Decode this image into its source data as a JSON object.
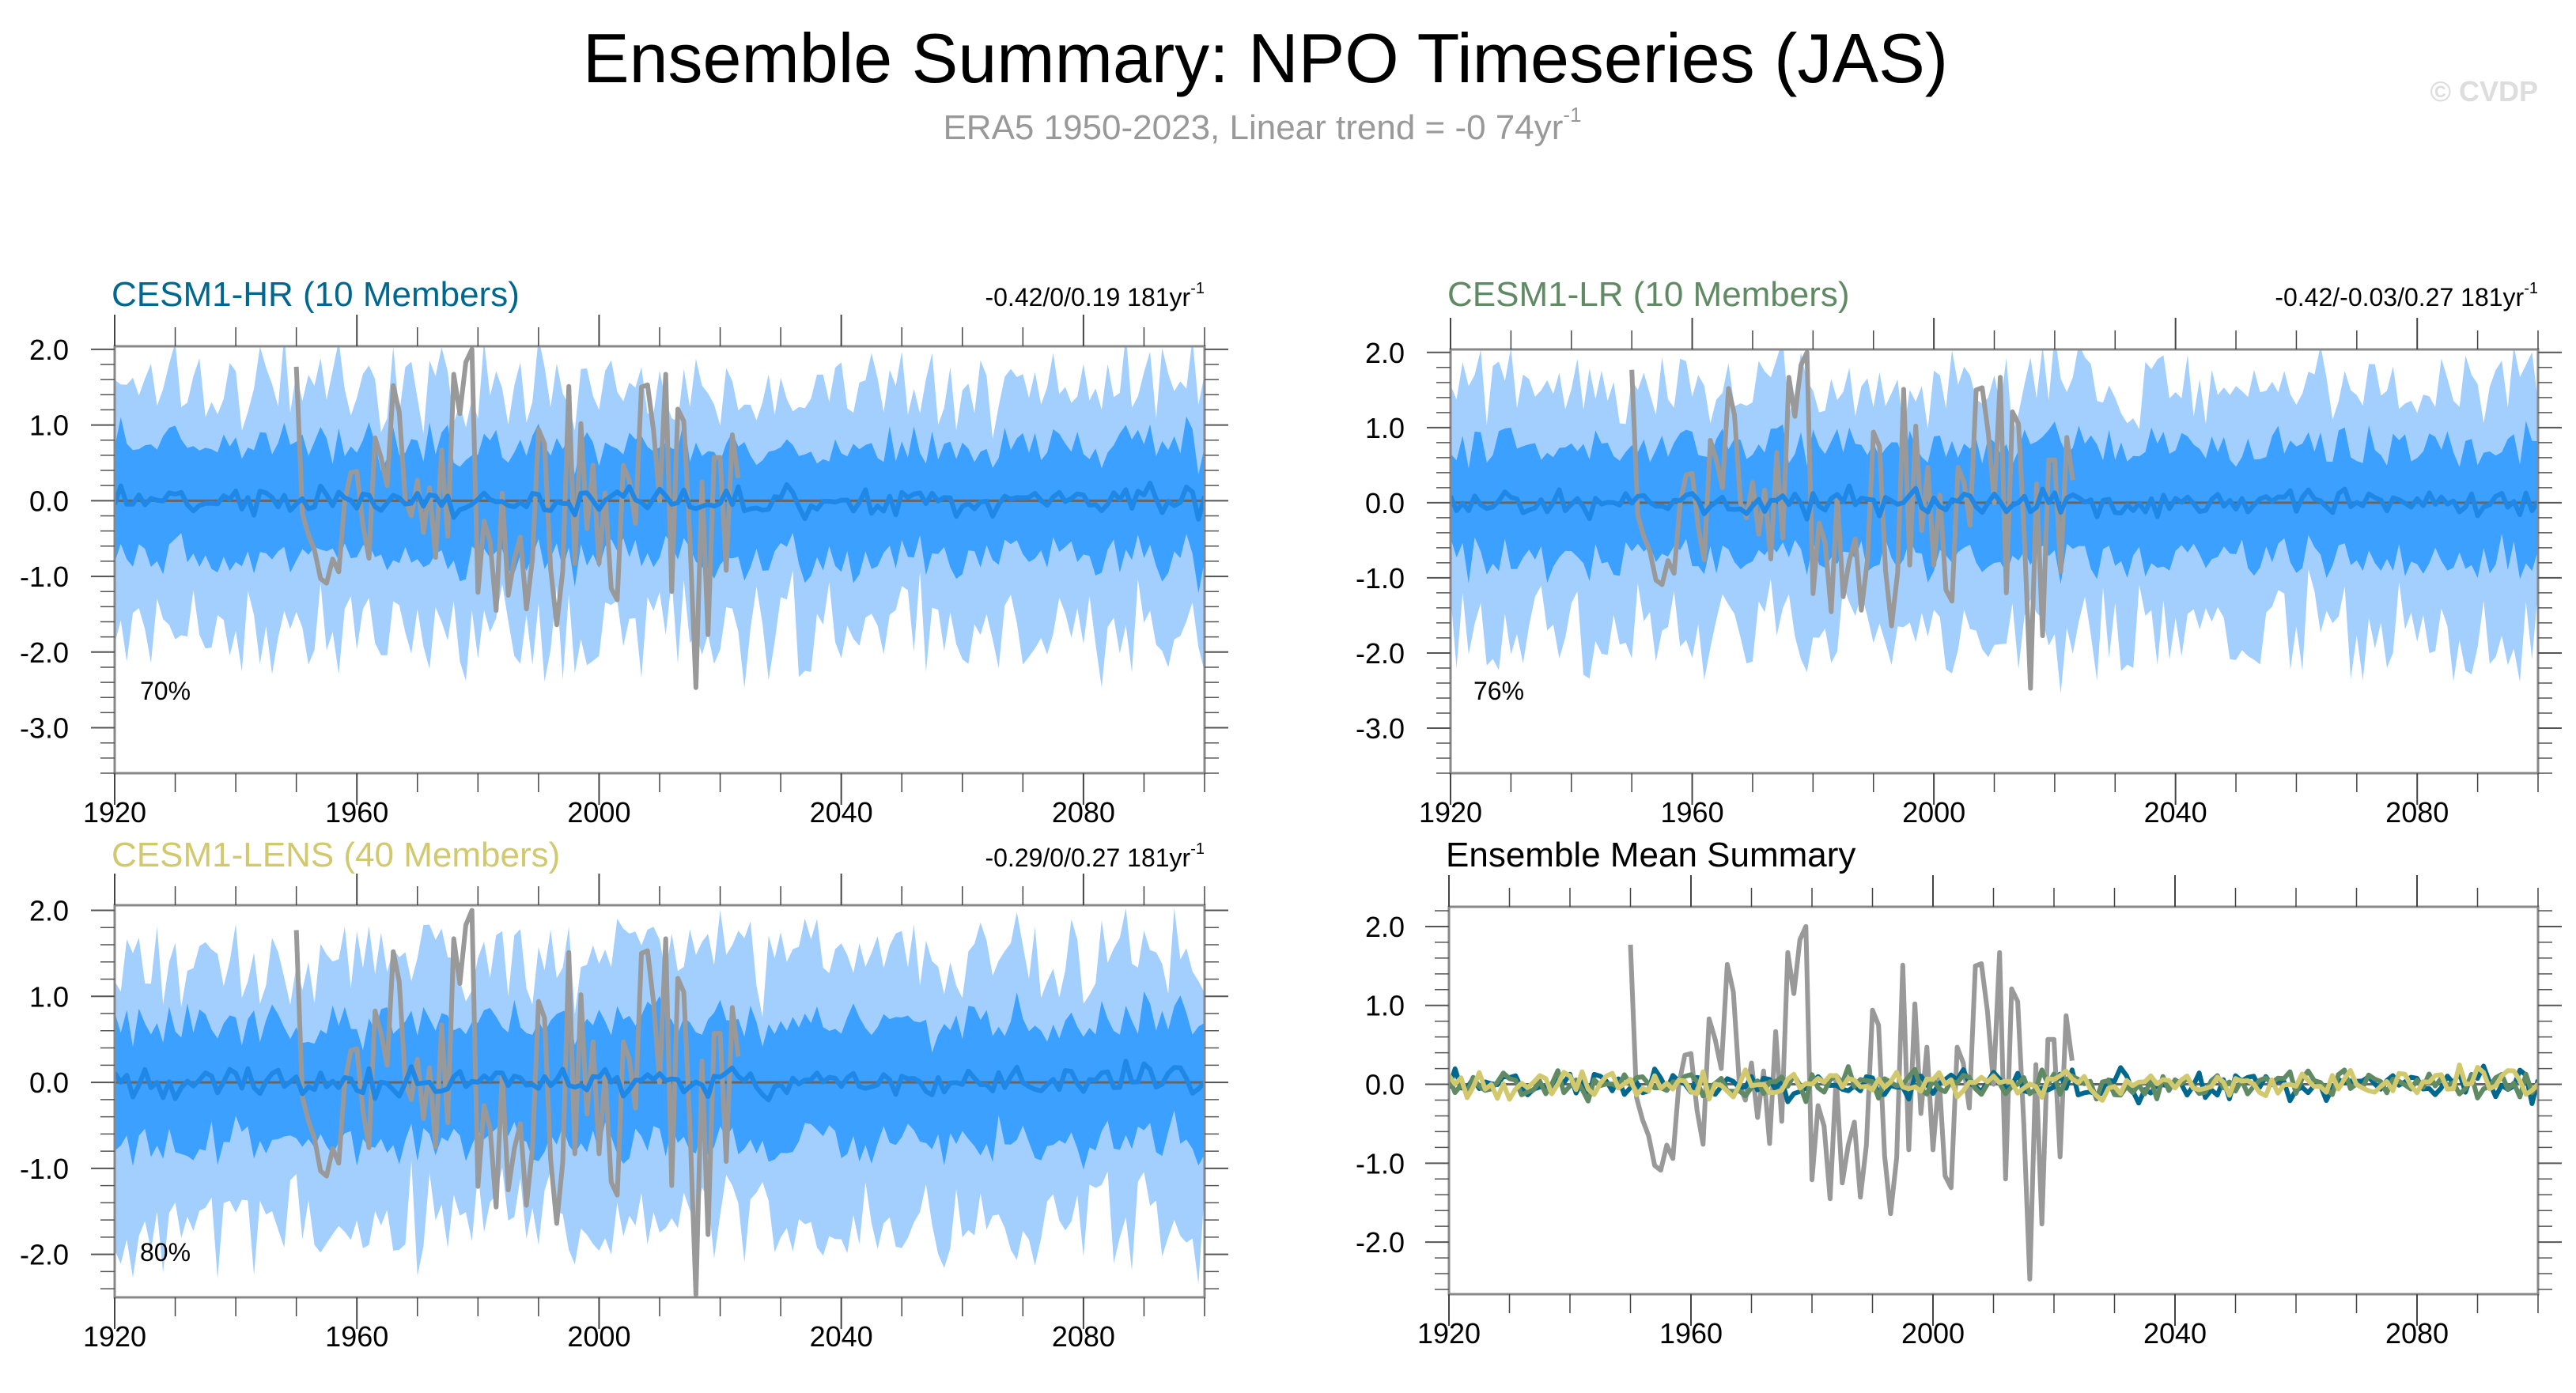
{
  "title": "Ensemble Summary: NPO Timeseries (JAS)",
  "subtitle_main": "ERA5 1950-2023, Linear trend = -0 74yr",
  "subtitle_sup": "-1",
  "watermark": "© CVDP",
  "colors": {
    "outer_band": "#a3cfff",
    "inner_band": "#3ba0ff",
    "ens_mean": "#1f87e6",
    "obs": "#999999",
    "zero": "#666666",
    "hr": "#00688f",
    "lr": "#5f8a63",
    "lens": "#d2c96e"
  },
  "chart_data": [
    {
      "type": "area",
      "id": "hr",
      "title": "CESM1-HR (10 Members)",
      "title_color": "#00688f",
      "trend": "-0.42/0/0.19 181yr",
      "trend_sup": "-1",
      "percent": "70%",
      "xlim": [
        1920,
        2100
      ],
      "ylim": [
        -3.6,
        2.04
      ],
      "yticks": [
        "2.0",
        "1.0",
        "0.0",
        "-1.0",
        "-2.0",
        "-3.0"
      ],
      "ytick_values": [
        2,
        1,
        0,
        -1,
        -2,
        -3
      ],
      "xticks": [
        "1920",
        "1960",
        "2000",
        "2040",
        "2080"
      ],
      "xtick_values": [
        1920,
        1960,
        2000,
        2040,
        2080
      ],
      "spread": {
        "inner": 0.75,
        "outer": 1.45,
        "seed": 11
      }
    },
    {
      "type": "area",
      "id": "lr",
      "title": "CESM1-LR (10 Members)",
      "title_color": "#5f8a63",
      "trend": "-0.42/-0.03/0.27 181yr",
      "trend_sup": "-1",
      "percent": "76%",
      "xlim": [
        1920,
        2100
      ],
      "ylim": [
        -3.6,
        2.04
      ],
      "yticks": [
        "2.0",
        "1.0",
        "0.0",
        "-1.0",
        "-2.0",
        "-3.0"
      ],
      "ytick_values": [
        2,
        1,
        0,
        -1,
        -2,
        -3
      ],
      "xticks": [
        "1920",
        "1960",
        "2000",
        "2040",
        "2080"
      ],
      "xtick_values": [
        1920,
        1960,
        2000,
        2040,
        2080
      ],
      "spread": {
        "inner": 0.75,
        "outer": 1.45,
        "seed": 23
      }
    },
    {
      "type": "area",
      "id": "lens",
      "title": "CESM1-LENS (40 Members)",
      "title_color": "#d2c96e",
      "trend": "-0.29/0/0.27 181yr",
      "trend_sup": "-1",
      "percent": "80%",
      "xlim": [
        1920,
        2100
      ],
      "ylim": [
        -2.5,
        2.06
      ],
      "yticks": [
        "2.0",
        "1.0",
        "0.0",
        "-1.0",
        "-2.0"
      ],
      "ytick_values": [
        2,
        1,
        0,
        -1,
        -2
      ],
      "xticks": [
        "1920",
        "1960",
        "2000",
        "2040",
        "2080"
      ],
      "xtick_values": [
        1920,
        1960,
        2000,
        2040,
        2080
      ],
      "spread": {
        "inner": 0.7,
        "outer": 1.35,
        "seed": 37
      }
    },
    {
      "type": "line",
      "id": "summary",
      "title": "Ensemble Mean Summary",
      "title_color": "#000000",
      "xlim": [
        1920,
        2100
      ],
      "ylim": [
        -2.66,
        2.25
      ],
      "yticks": [
        "2.0",
        "1.0",
        "0.0",
        "-1.0",
        "-2.0"
      ],
      "ytick_values": [
        2,
        1,
        0,
        -1,
        -2
      ],
      "xticks": [
        "1920",
        "1960",
        "2000",
        "2040",
        "2080"
      ],
      "xtick_values": [
        1920,
        1960,
        2000,
        2040,
        2080
      ],
      "series": [
        {
          "name": "CESM1-HR",
          "color": "#00688f",
          "seed": 11
        },
        {
          "name": "CESM1-LR",
          "color": "#5f8a63",
          "seed": 23
        },
        {
          "name": "CESM1-LENS",
          "color": "#d2c96e",
          "seed": 37
        }
      ]
    }
  ],
  "obs": {
    "name": "ERA5",
    "start_year": 1950,
    "values": [
      1.77,
      -0.17,
      -0.45,
      -0.65,
      -1.03,
      -1.09,
      -0.77,
      -0.94,
      0.0,
      0.37,
      0.39,
      -0.33,
      -0.76,
      0.83,
      0.57,
      0.2,
      1.52,
      1.17,
      0.0,
      -0.2,
      0.27,
      -0.42,
      0.17,
      -0.75,
      0.67,
      -0.47,
      1.67,
      1.15,
      1.83,
      2.0,
      -1.21,
      -0.27,
      -0.53,
      -1.45,
      0.1,
      -1.25,
      -0.77,
      -0.48,
      -1.43,
      -0.77,
      0.94,
      0.75,
      -0.9,
      -1.64,
      -0.93,
      1.51,
      -0.83,
      1.02,
      -0.37,
      0.47,
      -0.83,
      0.1,
      -1.16,
      -1.31,
      0.47,
      0.27,
      -0.3,
      1.5,
      1.53,
      0.93,
      0.0,
      1.67,
      -1.2,
      1.21,
      1.05,
      -0.5,
      -2.47,
      0.25,
      -1.77,
      0.57,
      0.57,
      -0.92,
      0.87,
      0.3
    ]
  }
}
